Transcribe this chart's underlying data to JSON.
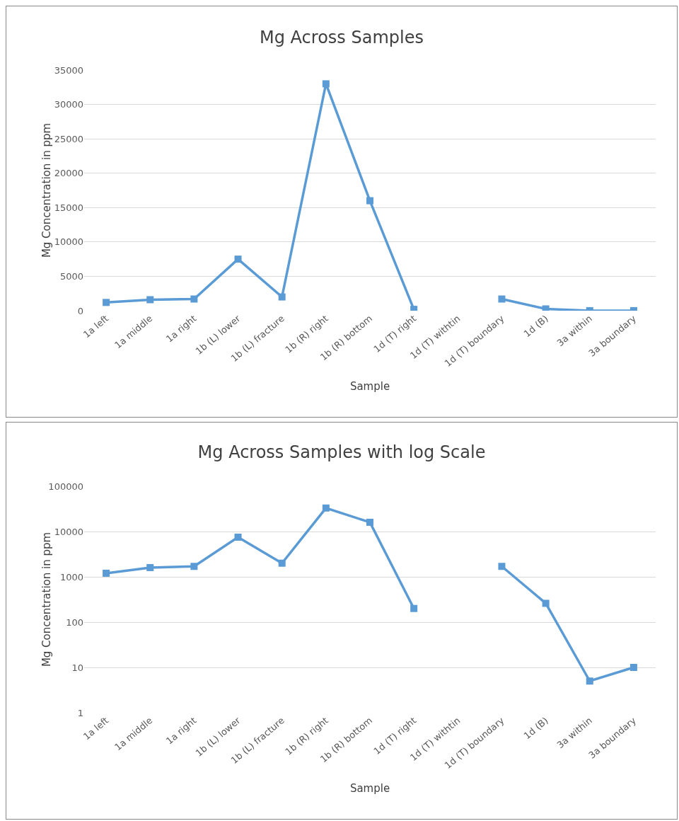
{
  "chart_data": [
    {
      "type": "line",
      "title": "Mg Across Samples",
      "xlabel": "Sample",
      "ylabel": "Mg Concentration in ppm",
      "categories": [
        "1a left",
        "1a middle",
        "1a right",
        "1b (L) lower",
        "1b (L) fracture",
        "1b (R) right",
        "1b (R) bottom",
        "1d (T) right",
        "1d (T) withtin",
        "1d (T) boundary",
        "1d (B)",
        "3a within",
        "3a boundary"
      ],
      "series": [
        {
          "color": "#5b9bd5",
          "values": [
            1200,
            1600,
            1700,
            7500,
            2000,
            33000,
            16000,
            200,
            null,
            1700,
            260,
            5,
            10
          ]
        }
      ],
      "ylim": [
        0,
        35000
      ],
      "yticks": [
        0,
        5000,
        10000,
        15000,
        20000,
        25000,
        30000,
        35000
      ],
      "grid": "y",
      "marker": "square",
      "line_style": "solid"
    },
    {
      "type": "line",
      "title": "Mg Across Samples with log Scale",
      "xlabel": "Sample",
      "ylabel": "Mg Concentration in ppm",
      "categories": [
        "1a left",
        "1a middle",
        "1a right",
        "1b (L) lower",
        "1b (L) fracture",
        "1b (R) right",
        "1b (R) bottom",
        "1d (T) right",
        "1d (T) withtin",
        "1d (T) boundary",
        "1d (B)",
        "3a within",
        "3a boundary"
      ],
      "series": [
        {
          "color": "#5b9bd5",
          "values": [
            1200,
            1600,
            1700,
            7500,
            2000,
            33000,
            16000,
            200,
            null,
            1700,
            260,
            5,
            10
          ]
        }
      ],
      "log": "y",
      "ylim": [
        1,
        100000
      ],
      "yticks": [
        1,
        10,
        100,
        1000,
        10000,
        100000
      ],
      "grid": "y",
      "marker": "square",
      "line_style": "solid"
    }
  ]
}
